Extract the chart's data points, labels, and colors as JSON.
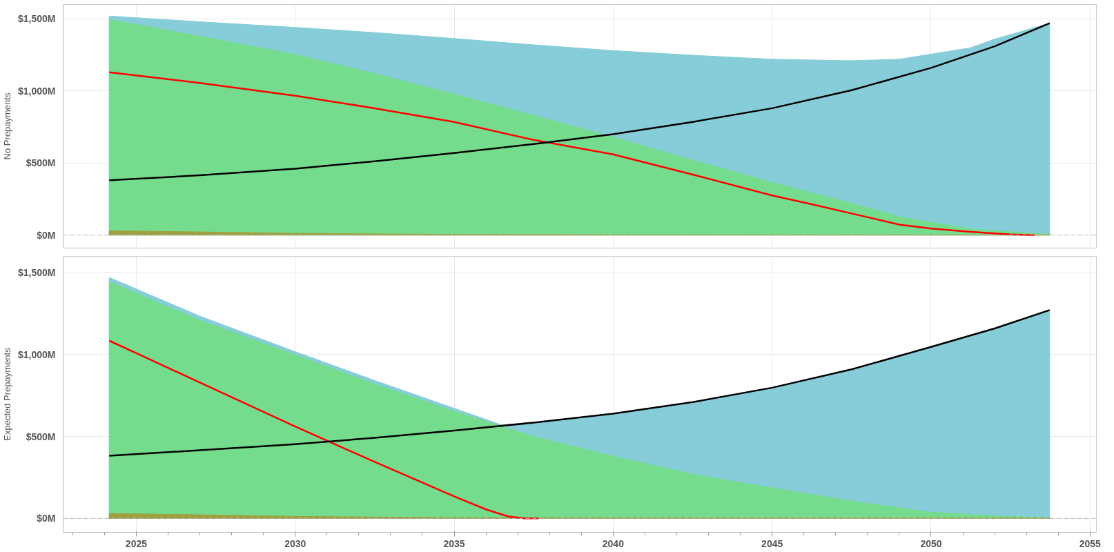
{
  "chart_data": [
    {
      "type": "area",
      "ylabel": "No Prepayments",
      "xlim": [
        2022.7,
        2055.2
      ],
      "ylim": [
        -90,
        1600
      ],
      "xticks": [
        2025,
        2030,
        2035,
        2040,
        2045,
        2050,
        2055
      ],
      "yticks": [
        {
          "value": 0,
          "label": "$0M"
        },
        {
          "value": 500,
          "label": "$500M"
        },
        {
          "value": 1000,
          "label": "$1,000M"
        },
        {
          "value": 1500,
          "label": "$1,500M"
        }
      ],
      "tick_labels": "y",
      "grid": true,
      "ref_lines": [
        {
          "axis": "y",
          "value": 0,
          "label": null,
          "color": "#bbbbbb",
          "line_style": "dashed"
        }
      ],
      "series": [
        {
          "color": "#86cdd9",
          "x": [
            2024.15,
            2027,
            2030,
            2032.5,
            2035,
            2037.5,
            2040,
            2042.5,
            2045,
            2047.5,
            2049,
            2051.25,
            2052,
            2053.73
          ],
          "values": [
            1520,
            1480,
            1441,
            1405,
            1364,
            1320,
            1280,
            1248,
            1220,
            1210,
            1220,
            1300,
            1360,
            1470
          ]
        },
        {
          "color": "#74dc8c",
          "x": [
            2024.15,
            2027,
            2030,
            2032.5,
            2035,
            2037.5,
            2040,
            2042.5,
            2045,
            2047.5,
            2049,
            2051.25,
            2053.73
          ],
          "values": [
            1495,
            1380,
            1253,
            1120,
            978,
            830,
            680,
            520,
            365,
            220,
            128,
            42,
            5
          ]
        },
        {
          "color": "#a0a040",
          "x": [
            2024.15,
            2027,
            2030,
            2035,
            2040,
            2045,
            2053.73
          ],
          "values": [
            30,
            22,
            12,
            5,
            3,
            2,
            2
          ]
        },
        {
          "type": "line",
          "color": "#ff0000",
          "x": [
            2024.15,
            2027,
            2030,
            2032.5,
            2035,
            2037.5,
            2040,
            2042.5,
            2045,
            2046.1,
            2047.5,
            2049,
            2050,
            2051.25,
            2052.5,
            2053.25
          ],
          "values": [
            1130,
            1055,
            967,
            880,
            785,
            660,
            560,
            420,
            275,
            221,
            150,
            73,
            45,
            22,
            5,
            0
          ]
        },
        {
          "type": "line",
          "color": "#000000",
          "x": [
            2024.15,
            2027,
            2030,
            2032.5,
            2035,
            2037.5,
            2040,
            2042.5,
            2045,
            2047.5,
            2050,
            2052,
            2053.73
          ],
          "values": [
            380,
            415,
            461,
            512,
            570,
            632,
            700,
            785,
            880,
            1005,
            1160,
            1310,
            1470
          ]
        }
      ]
    },
    {
      "type": "area",
      "ylabel": "Expected Prepayments",
      "xlim": [
        2022.7,
        2055.2
      ],
      "ylim": [
        -85,
        1600
      ],
      "xticks": [
        2025,
        2030,
        2035,
        2040,
        2045,
        2050,
        2055
      ],
      "yticks": [
        {
          "value": 0,
          "label": "$0M"
        },
        {
          "value": 500,
          "label": "$500M"
        },
        {
          "value": 1000,
          "label": "$1,000M"
        },
        {
          "value": 1500,
          "label": "$1,500M"
        }
      ],
      "grid": true,
      "ref_lines": [
        {
          "axis": "y",
          "value": 0,
          "label": null,
          "color": "#bbbbbb",
          "line_style": "dashed"
        }
      ],
      "series": [
        {
          "color": "#86cdd9",
          "x": [
            2024.15,
            2027,
            2030,
            2032.5,
            2035,
            2036.5,
            2037.5,
            2040,
            2042.5,
            2045,
            2047.5,
            2050,
            2052,
            2053.73
          ],
          "values": [
            1471,
            1235,
            1018,
            842,
            672,
            570,
            585,
            640,
            710,
            798,
            910,
            1047,
            1160,
            1272
          ]
        },
        {
          "color": "#74dc8c",
          "x": [
            2024.15,
            2027,
            2030,
            2032.5,
            2035,
            2037.5,
            2040,
            2042.5,
            2045,
            2047.5,
            2050,
            2052,
            2053.73
          ],
          "values": [
            1444,
            1210,
            998,
            820,
            654,
            500,
            380,
            270,
            186,
            105,
            38,
            15,
            5
          ]
        },
        {
          "color": "#a0a040",
          "x": [
            2024.15,
            2027,
            2030,
            2035,
            2040,
            2045,
            2053.73
          ],
          "values": [
            30,
            22,
            12,
            5,
            3,
            2,
            2
          ]
        },
        {
          "type": "line",
          "color": "#ff0000",
          "x": [
            2024.15,
            2027,
            2030,
            2032.5,
            2035,
            2036,
            2036.7,
            2037.2,
            2037.65
          ],
          "values": [
            1085,
            830,
            561,
            345,
            135,
            55,
            12,
            0,
            0
          ]
        },
        {
          "type": "line",
          "color": "#000000",
          "x": [
            2024.15,
            2027,
            2030,
            2032.5,
            2035,
            2037.5,
            2040,
            2042.5,
            2045,
            2047.5,
            2050,
            2052,
            2053.73
          ],
          "values": [
            383,
            416,
            453,
            492,
            536,
            585,
            640,
            710,
            798,
            910,
            1047,
            1160,
            1272
          ]
        }
      ]
    }
  ]
}
